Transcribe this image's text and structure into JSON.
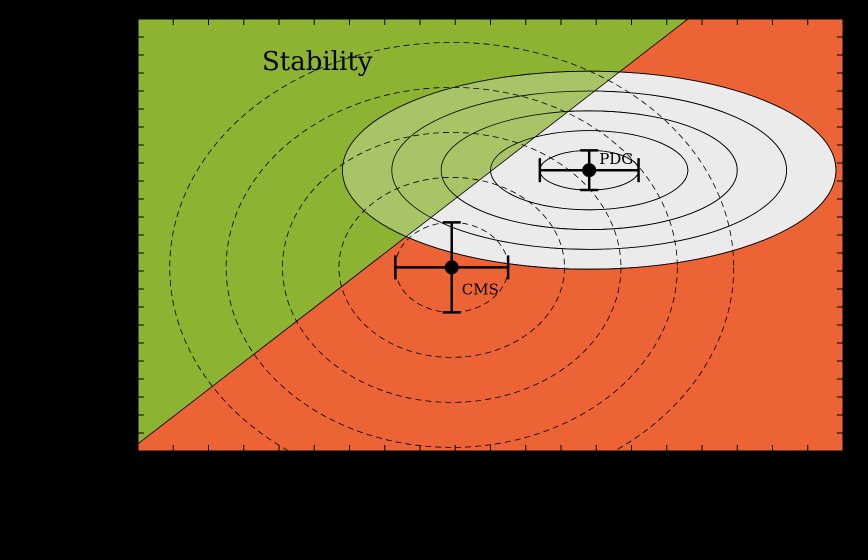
{
  "chart_data": {
    "type": "scatter",
    "title": "",
    "xlabel": "",
    "ylabel": "",
    "xlim": [
      0,
      20
    ],
    "ylim": [
      0,
      12
    ],
    "grid": false,
    "regions": [
      {
        "label": "Stability",
        "color": "#8db332",
        "boundary": "upper-left of line from (0, 0.2) to (15.6, 12)"
      },
      {
        "label": "",
        "color": "#ec6436",
        "boundary": "lower-right of same line"
      }
    ],
    "points": [
      {
        "label": "PDG",
        "x": 12.8,
        "y": 7.8,
        "xerr": 1.4,
        "yerr": 0.55
      },
      {
        "label": "CMS",
        "x": 8.9,
        "y": 5.1,
        "xerr": 1.6,
        "yerr": 1.25
      }
    ],
    "pdg_ellipses": {
      "center": [
        12.8,
        7.8
      ],
      "x_semi_axes": [
        7.0,
        5.6,
        4.2,
        2.8,
        1.4
      ],
      "y_semi_axes": [
        2.75,
        2.2,
        1.65,
        1.1,
        0.55
      ],
      "fill": "#ebebeb"
    },
    "cms_contours": {
      "center": [
        8.9,
        5.1
      ],
      "x_semi_axes": [
        8.0,
        6.4,
        4.8,
        3.2,
        1.6
      ],
      "y_semi_axes": [
        6.25,
        5.0,
        3.75,
        2.5,
        1.25
      ],
      "style": "dashed"
    },
    "colors": {
      "background": "#000000",
      "stable": "#8db332",
      "unstable": "#ec6436",
      "ellipse": "#ebebeb",
      "marker": "#000000"
    }
  }
}
